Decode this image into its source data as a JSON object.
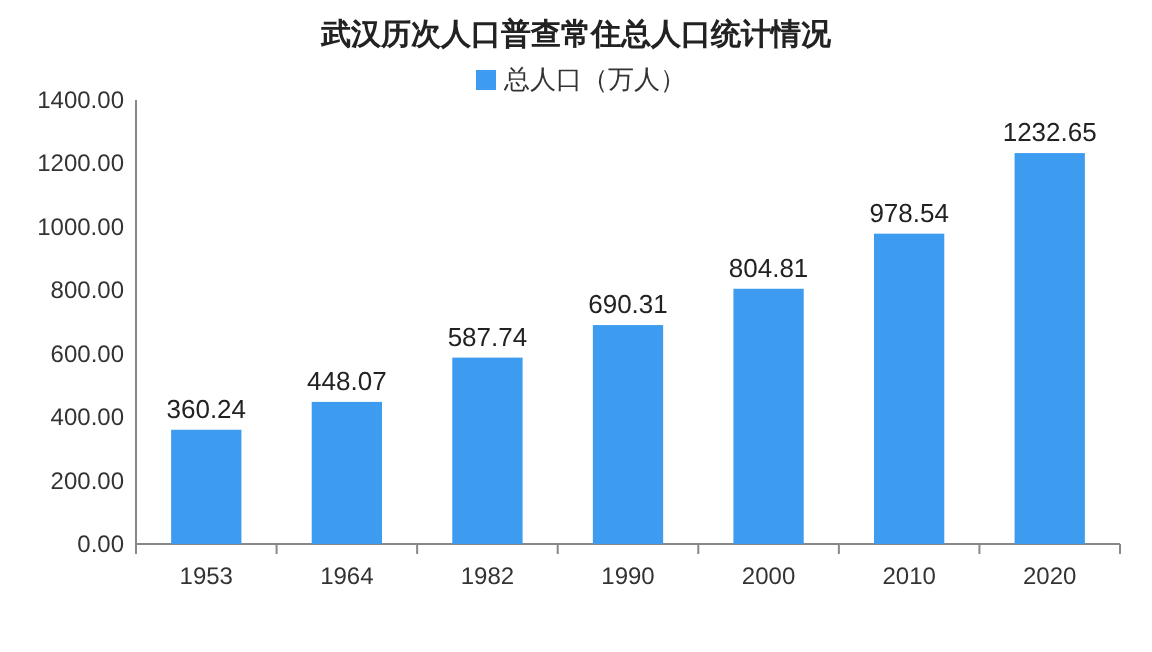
{
  "chart_data": {
    "type": "bar",
    "title": "武汉历次人口普查常住总人口统计情况",
    "categories": [
      "1953",
      "1964",
      "1982",
      "1990",
      "2000",
      "2010",
      "2020"
    ],
    "series": [
      {
        "name": "总人口（万人）",
        "color": "#3d9bf0",
        "values": [
          360.24,
          448.07,
          587.74,
          690.31,
          804.81,
          978.54,
          1232.65
        ]
      }
    ],
    "ylim": [
      0,
      1400
    ],
    "yticks": [
      {
        "value": 0,
        "label": "0.00"
      },
      {
        "value": 200,
        "label": "200.00"
      },
      {
        "value": 400,
        "label": "400.00"
      },
      {
        "value": 600,
        "label": "600.00"
      },
      {
        "value": 800,
        "label": "800.00"
      },
      {
        "value": 1000,
        "label": "1000.00"
      },
      {
        "value": 1200,
        "label": "1200.00"
      },
      {
        "value": 1400,
        "label": "1400.00"
      }
    ],
    "data_labels": true,
    "legend": "top",
    "grid": false
  }
}
